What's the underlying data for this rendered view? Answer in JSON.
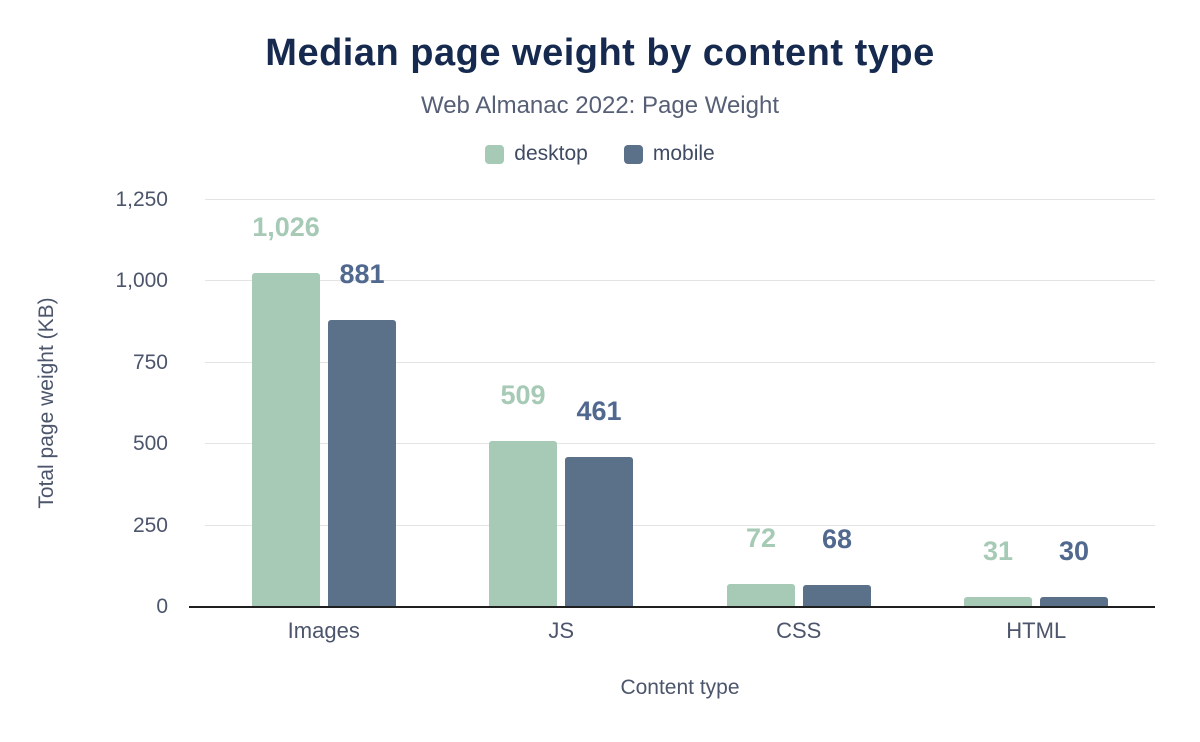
{
  "chart_data": {
    "type": "bar",
    "title": "Median page weight by content type",
    "subtitle": "Web Almanac 2022: Page Weight",
    "xlabel": "Content type",
    "ylabel": "Total page weight (KB)",
    "ylim": [
      0,
      1250
    ],
    "grid": "horizontal",
    "legend_position": "top-center",
    "categories": [
      "Images",
      "JS",
      "CSS",
      "HTML"
    ],
    "yticks": [
      {
        "value": 0,
        "label": "0"
      },
      {
        "value": 250,
        "label": "250"
      },
      {
        "value": 500,
        "label": "500"
      },
      {
        "value": 750,
        "label": "750"
      },
      {
        "value": 1000,
        "label": "1,000"
      },
      {
        "value": 1250,
        "label": "1,250"
      }
    ],
    "series": [
      {
        "name": "desktop",
        "color": "#a6cab5",
        "label_color": "#a6cab5",
        "values": [
          1026,
          509,
          72,
          31
        ],
        "value_labels": [
          "1,026",
          "509",
          "72",
          "31"
        ]
      },
      {
        "name": "mobile",
        "color": "#5b7089",
        "label_color": "#51688f",
        "values": [
          881,
          461,
          68,
          30
        ],
        "value_labels": [
          "881",
          "461",
          "68",
          "30"
        ]
      }
    ],
    "colors": {
      "title": "#16294e",
      "subtitle": "#565f76",
      "axis_text": "#4c556b",
      "gridline": "#e4e4e4",
      "axis_line": "#1f1f1f",
      "background": "#ffffff"
    }
  }
}
